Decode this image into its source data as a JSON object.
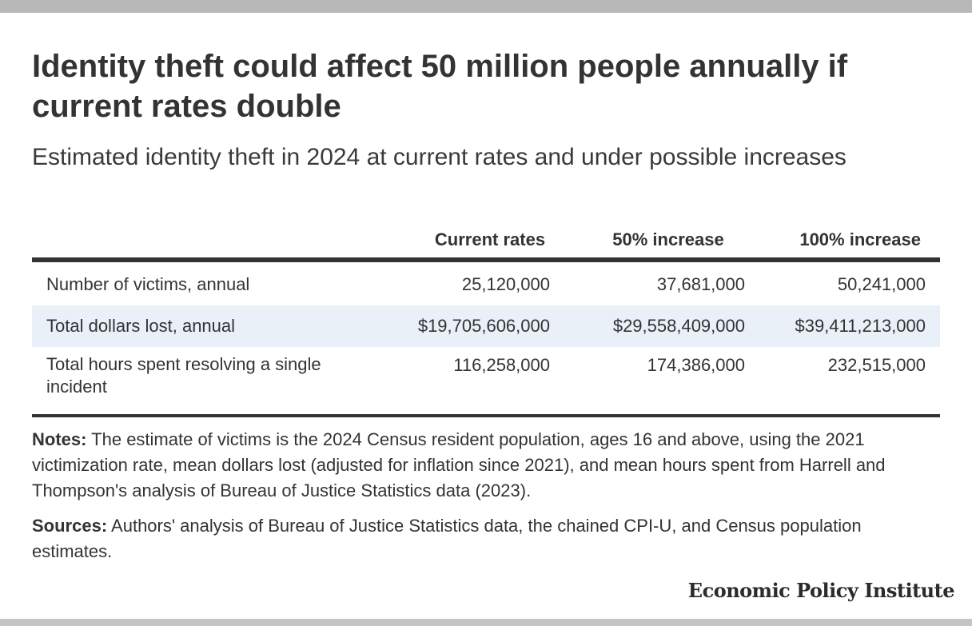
{
  "chart_data": {
    "type": "table",
    "title": "Identity theft could affect 50 million people annually if current rates double",
    "subtitle": "Estimated identity theft in 2024 at current rates and under possible increases",
    "columns": [
      "",
      "Current rates",
      "50% increase",
      "100% increase"
    ],
    "rows": [
      {
        "label": "Number of victims, annual",
        "values": [
          "25,120,000",
          "37,681,000",
          "50,241,000"
        ]
      },
      {
        "label": "Total dollars lost, annual",
        "values": [
          "$19,705,606,000",
          "$29,558,409,000",
          "$39,411,213,000"
        ]
      },
      {
        "label": "Total hours spent resolving a single incident",
        "values": [
          "116,258,000",
          "174,386,000",
          "232,515,000"
        ]
      }
    ]
  },
  "notes": {
    "lead": "Notes:",
    "text": " The estimate of victims is the 2024 Census resident population, ages 16 and above, using the 2021 victimization rate, mean dollars lost (adjusted for inflation since 2021), and mean hours spent from Harrell and Thompson's analysis of Bureau of Justice Statistics data (2023)."
  },
  "sources": {
    "lead": "Sources:",
    "text": " Authors' analysis of Bureau of Justice Statistics data, the chained CPI-U, and Census population estimates."
  },
  "brand": "Economic Policy Institute",
  "colors": {
    "text": "#333333",
    "row_highlight": "#e9f0f8",
    "top_bar": "#b8b8b8"
  }
}
